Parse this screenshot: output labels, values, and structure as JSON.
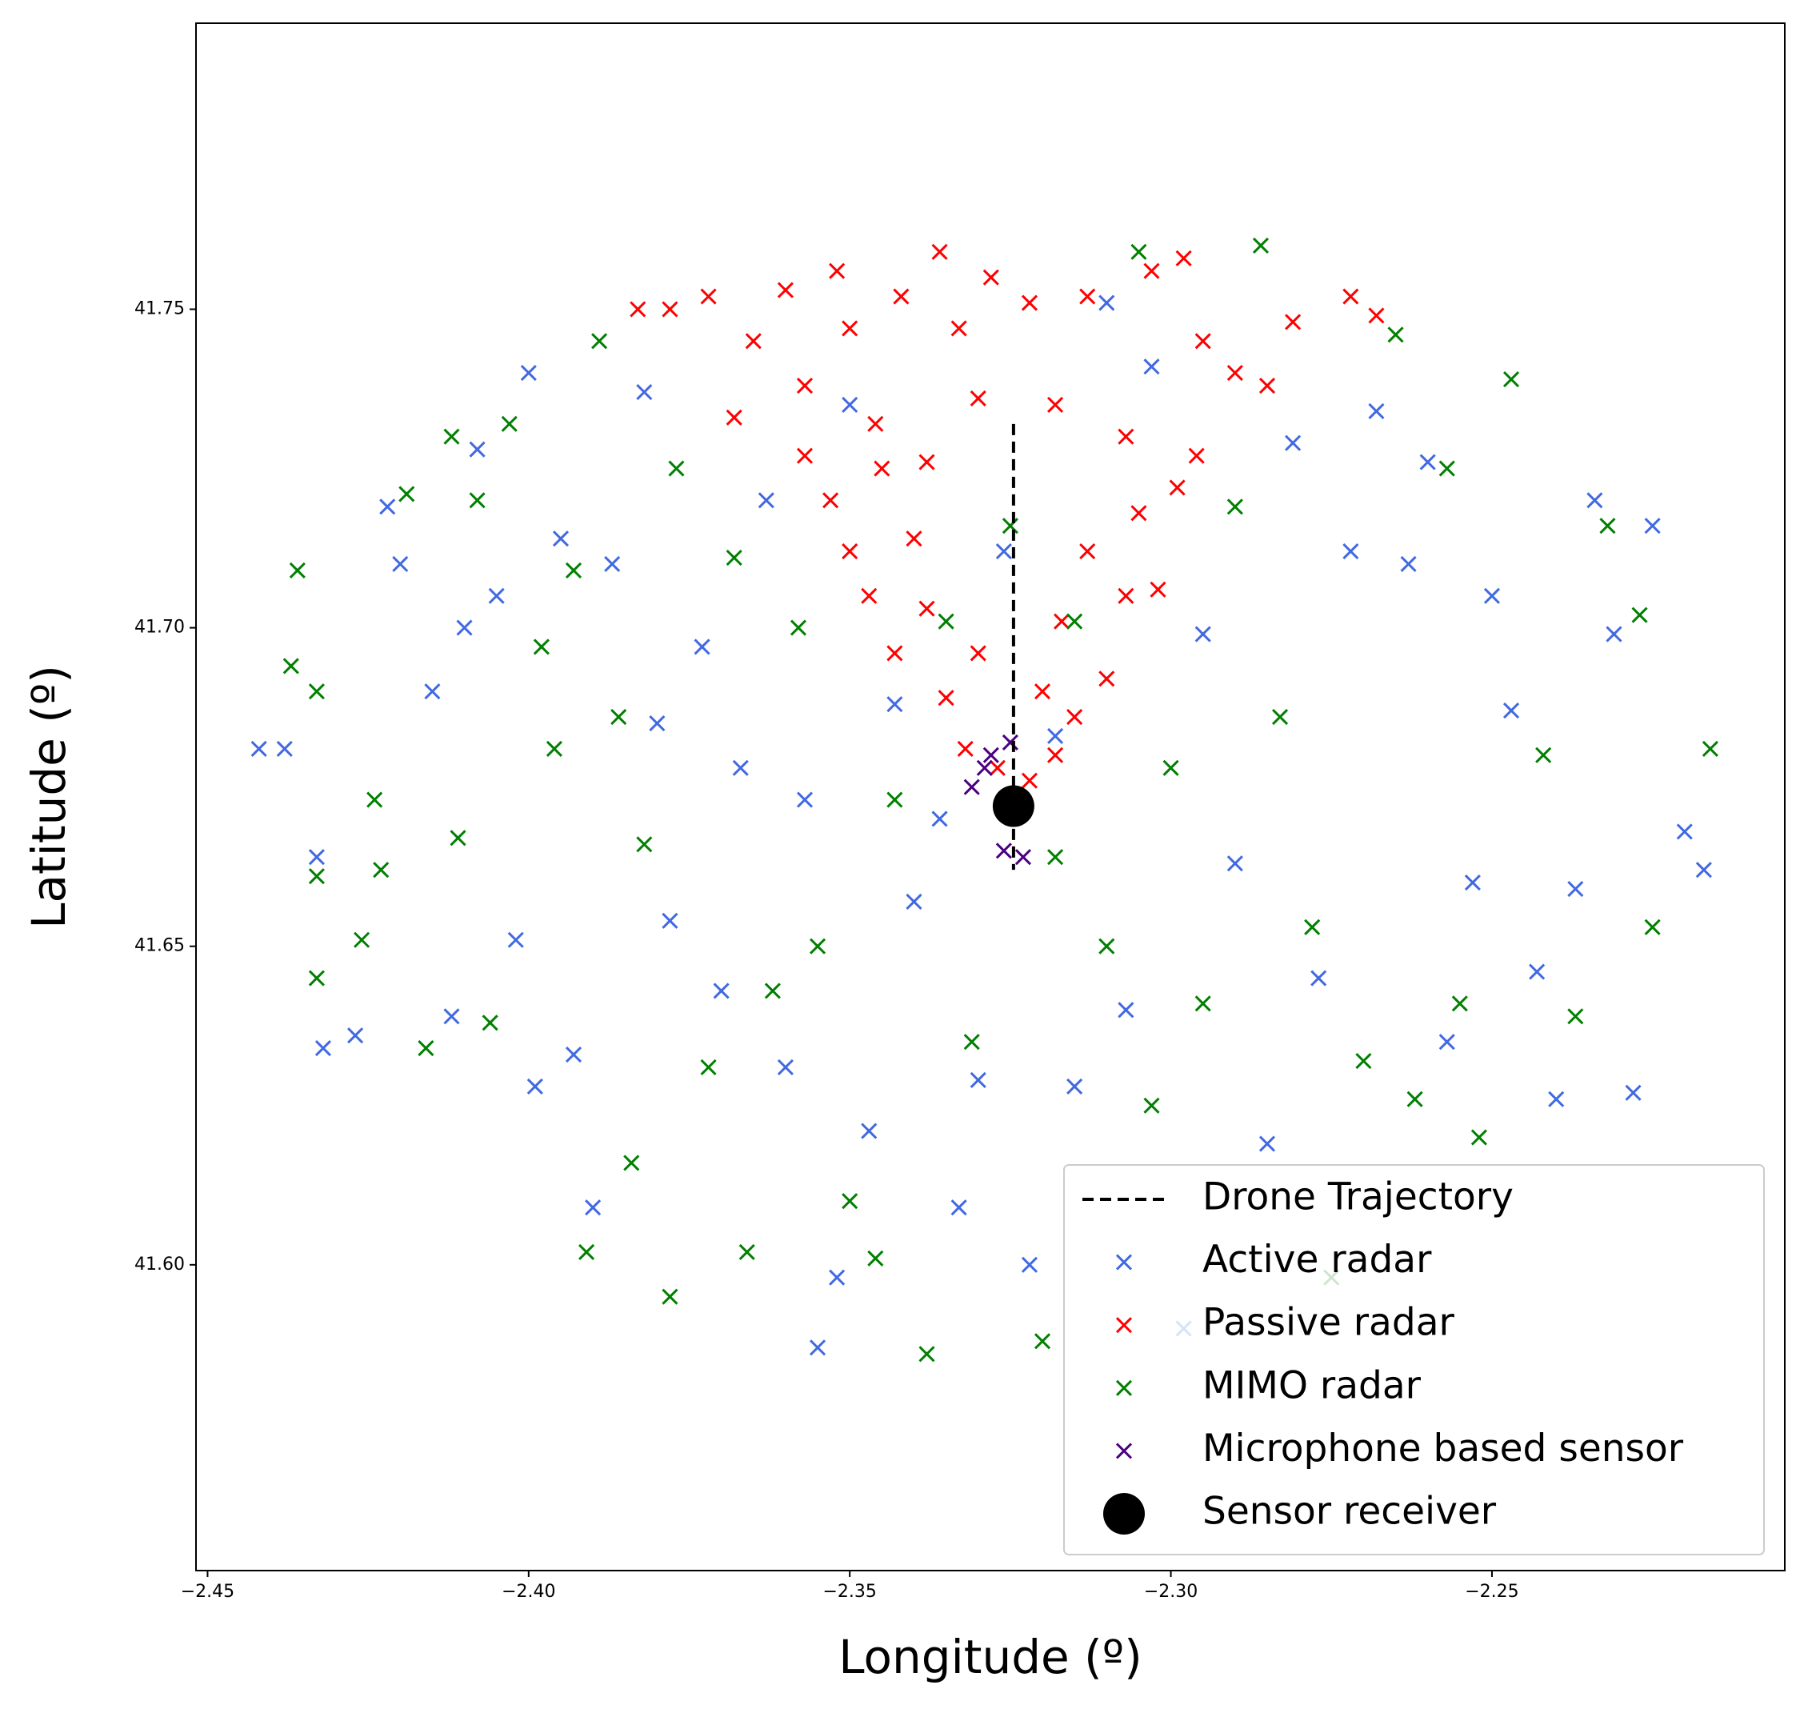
{
  "chart_data": {
    "type": "scatter",
    "xlabel": "Longitude (º)",
    "ylabel": "Latitude (º)",
    "xlim": [
      -2.4518,
      -2.2044
    ],
    "ylim": [
      41.552,
      41.7949
    ],
    "xticks": [
      {
        "value": -2.45,
        "label": "−2.45"
      },
      {
        "value": -2.4,
        "label": "−2.40"
      },
      {
        "value": -2.35,
        "label": "−2.35"
      },
      {
        "value": -2.3,
        "label": "−2.30"
      },
      {
        "value": -2.25,
        "label": "−2.25"
      }
    ],
    "yticks": [
      {
        "value": 41.6,
        "label": "41.60"
      },
      41.65,
      {
        "value": 41.7,
        "label": "41.70"
      },
      41.75
    ],
    "legend": "lower right",
    "series": [
      {
        "name": "Drone Trajectory",
        "color": "#000000",
        "marker": "dashed-line",
        "x": [
          -2.3245,
          -2.3245
        ],
        "y": [
          41.732,
          41.662
        ]
      },
      {
        "name": "Active radar",
        "color": "#4169e1",
        "marker": "x",
        "x": [
          -2.442,
          -2.438,
          -2.433,
          -2.432,
          -2.427,
          -2.422,
          -2.42,
          -2.415,
          -2.412,
          -2.41,
          -2.408,
          -2.405,
          -2.402,
          -2.4,
          -2.399,
          -2.395,
          -2.393,
          -2.39,
          -2.387,
          -2.382,
          -2.38,
          -2.378,
          -2.373,
          -2.37,
          -2.367,
          -2.363,
          -2.36,
          -2.357,
          -2.355,
          -2.352,
          -2.35,
          -2.347,
          -2.343,
          -2.34,
          -2.336,
          -2.333,
          -2.33,
          -2.326,
          -2.322,
          -2.318,
          -2.315,
          -2.31,
          -2.307,
          -2.303,
          -2.298,
          -2.295,
          -2.29,
          -2.285,
          -2.281,
          -2.277,
          -2.272,
          -2.268,
          -2.263,
          -2.26,
          -2.257,
          -2.253,
          -2.25,
          -2.247,
          -2.243,
          -2.24,
          -2.237,
          -2.234,
          -2.231,
          -2.228,
          -2.225,
          -2.22,
          -2.217
        ],
        "y": [
          41.681,
          41.681,
          41.664,
          41.634,
          41.636,
          41.719,
          41.71,
          41.69,
          41.639,
          41.7,
          41.728,
          41.705,
          41.651,
          41.74,
          41.628,
          41.714,
          41.633,
          41.609,
          41.71,
          41.737,
          41.685,
          41.654,
          41.697,
          41.643,
          41.678,
          41.72,
          41.631,
          41.673,
          41.587,
          41.598,
          41.735,
          41.621,
          41.688,
          41.657,
          41.67,
          41.609,
          41.629,
          41.712,
          41.6,
          41.683,
          41.628,
          41.751,
          41.64,
          41.741,
          41.59,
          41.699,
          41.663,
          41.619,
          41.729,
          41.645,
          41.712,
          41.734,
          41.71,
          41.726,
          41.635,
          41.66,
          41.705,
          41.687,
          41.646,
          41.626,
          41.659,
          41.72,
          41.699,
          41.627,
          41.716,
          41.668,
          41.662
        ]
      },
      {
        "name": "Passive radar",
        "color": "#ff0000",
        "marker": "x",
        "x": [
          -2.383,
          -2.378,
          -2.372,
          -2.368,
          -2.365,
          -2.36,
          -2.357,
          -2.352,
          -2.35,
          -2.346,
          -2.342,
          -2.338,
          -2.336,
          -2.333,
          -2.33,
          -2.328,
          -2.322,
          -2.318,
          -2.313,
          -2.307,
          -2.303,
          -2.298,
          -2.295,
          -2.29,
          -2.285,
          -2.281,
          -2.272,
          -2.268,
          -2.357,
          -2.353,
          -2.35,
          -2.347,
          -2.343,
          -2.338,
          -2.335,
          -2.332,
          -2.33,
          -2.327,
          -2.322,
          -2.32,
          -2.317,
          -2.313,
          -2.31,
          -2.307,
          -2.305,
          -2.302,
          -2.299,
          -2.296,
          -2.318,
          -2.315,
          -2.34,
          -2.345
        ],
        "y": [
          41.75,
          41.75,
          41.752,
          41.733,
          41.745,
          41.753,
          41.738,
          41.756,
          41.747,
          41.732,
          41.752,
          41.726,
          41.759,
          41.747,
          41.736,
          41.755,
          41.751,
          41.735,
          41.752,
          41.73,
          41.756,
          41.758,
          41.745,
          41.74,
          41.738,
          41.748,
          41.752,
          41.749,
          41.727,
          41.72,
          41.712,
          41.705,
          41.696,
          41.703,
          41.689,
          41.681,
          41.696,
          41.678,
          41.676,
          41.69,
          41.701,
          41.712,
          41.692,
          41.705,
          41.718,
          41.706,
          41.722,
          41.727,
          41.68,
          41.686,
          41.714,
          41.725
        ]
      },
      {
        "name": "MIMO radar",
        "color": "#008000",
        "marker": "x",
        "x": [
          -2.437,
          -2.436,
          -2.433,
          -2.433,
          -2.433,
          -2.426,
          -2.424,
          -2.423,
          -2.419,
          -2.416,
          -2.412,
          -2.411,
          -2.408,
          -2.406,
          -2.403,
          -2.398,
          -2.396,
          -2.393,
          -2.391,
          -2.389,
          -2.386,
          -2.384,
          -2.382,
          -2.378,
          -2.377,
          -2.372,
          -2.368,
          -2.366,
          -2.362,
          -2.358,
          -2.355,
          -2.35,
          -2.346,
          -2.343,
          -2.338,
          -2.335,
          -2.331,
          -2.325,
          -2.32,
          -2.318,
          -2.315,
          -2.31,
          -2.305,
          -2.303,
          -2.3,
          -2.295,
          -2.29,
          -2.286,
          -2.283,
          -2.278,
          -2.275,
          -2.27,
          -2.265,
          -2.262,
          -2.257,
          -2.255,
          -2.252,
          -2.247,
          -2.242,
          -2.237,
          -2.232,
          -2.227,
          -2.225,
          -2.216
        ],
        "y": [
          41.694,
          41.709,
          41.69,
          41.661,
          41.645,
          41.651,
          41.673,
          41.662,
          41.721,
          41.634,
          41.73,
          41.667,
          41.72,
          41.638,
          41.732,
          41.697,
          41.681,
          41.709,
          41.602,
          41.745,
          41.686,
          41.616,
          41.666,
          41.595,
          41.725,
          41.631,
          41.711,
          41.602,
          41.643,
          41.7,
          41.65,
          41.61,
          41.601,
          41.673,
          41.586,
          41.701,
          41.635,
          41.716,
          41.588,
          41.664,
          41.701,
          41.65,
          41.759,
          41.625,
          41.678,
          41.641,
          41.719,
          41.76,
          41.686,
          41.653,
          41.598,
          41.632,
          41.746,
          41.626,
          41.725,
          41.641,
          41.62,
          41.739,
          41.68,
          41.639,
          41.716,
          41.702,
          41.653,
          41.681
        ]
      },
      {
        "name": "Microphone based sensor",
        "color": "#4b0082",
        "marker": "x",
        "x": [
          -2.331,
          -2.328,
          -2.326,
          -2.323,
          -2.325,
          -2.329
        ],
        "y": [
          41.675,
          41.68,
          41.665,
          41.664,
          41.682,
          41.678
        ]
      },
      {
        "name": "Sensor receiver",
        "color": "#000000",
        "marker": "circle",
        "x": [
          -2.3245
        ],
        "y": [
          41.672
        ]
      }
    ]
  }
}
